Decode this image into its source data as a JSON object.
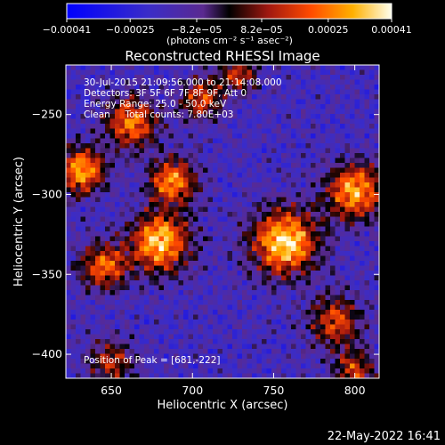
{
  "chart_data": {
    "type": "heatmap",
    "title": "Reconstructed RHESSI Image",
    "xlabel": "Heliocentric X (arcsec)",
    "ylabel": "Heliocentric Y (arcsec)",
    "xlim": [
      622,
      815
    ],
    "ylim": [
      -415,
      -219
    ],
    "x_ticks": [
      650,
      700,
      750,
      800
    ],
    "x_tick_labels": [
      "650",
      "700",
      "750",
      "800"
    ],
    "y_ticks": [
      -250,
      -300,
      -350,
      -400
    ],
    "y_tick_labels": [
      "−250",
      "−300",
      "−350",
      "−400"
    ],
    "colorbar": {
      "min": -0.00041,
      "max": 0.00041,
      "ticks": [
        -0.00041,
        -0.00025,
        -8.2e-05,
        8.2e-05,
        0.00025,
        0.00041
      ],
      "tick_labels": [
        "−0.00041",
        "−0.00025",
        "−8.2e−05",
        "8.2e−05",
        "0.00025",
        "0.00041"
      ],
      "units_label": "(photons cm⁻² s⁻¹ asec⁻²)",
      "colormap": "blue-purple-red-yellow-white"
    },
    "annotations": [
      "30-Jul-2015 21:09:56.000 to 21:14:08.000",
      "Detectors: 3F 5F 6F 7F 8F 9F, Att 0",
      "Energy Range: 25.0 - 50.0 keV",
      "Clean     Total counts: 7.80E+03"
    ],
    "peak_label": "Position of Peak = [681,-222]",
    "peak_position": [
      681,
      -222
    ],
    "emission_sources": [
      {
        "x": 757,
        "y": -330,
        "sigma": 14,
        "amp": 1.0
      },
      {
        "x": 688,
        "y": -292,
        "sigma": 10,
        "amp": 0.8
      },
      {
        "x": 680,
        "y": -330,
        "sigma": 13,
        "amp": 0.9
      },
      {
        "x": 645,
        "y": -345,
        "sigma": 10,
        "amp": 0.7
      },
      {
        "x": 662,
        "y": -255,
        "sigma": 11,
        "amp": 0.75
      },
      {
        "x": 632,
        "y": -285,
        "sigma": 10,
        "amp": 0.85
      },
      {
        "x": 705,
        "y": -240,
        "sigma": 9,
        "amp": 0.6
      },
      {
        "x": 800,
        "y": -298,
        "sigma": 12,
        "amp": 0.85
      },
      {
        "x": 788,
        "y": -380,
        "sigma": 11,
        "amp": 0.6
      },
      {
        "x": 800,
        "y": -410,
        "sigma": 9,
        "amp": 0.55
      },
      {
        "x": 728,
        "y": -225,
        "sigma": 8,
        "amp": 0.55
      },
      {
        "x": 650,
        "y": -405,
        "sigma": 10,
        "amp": 0.5
      }
    ]
  },
  "footer": {
    "timestamp": "22-May-2022 16:41"
  }
}
